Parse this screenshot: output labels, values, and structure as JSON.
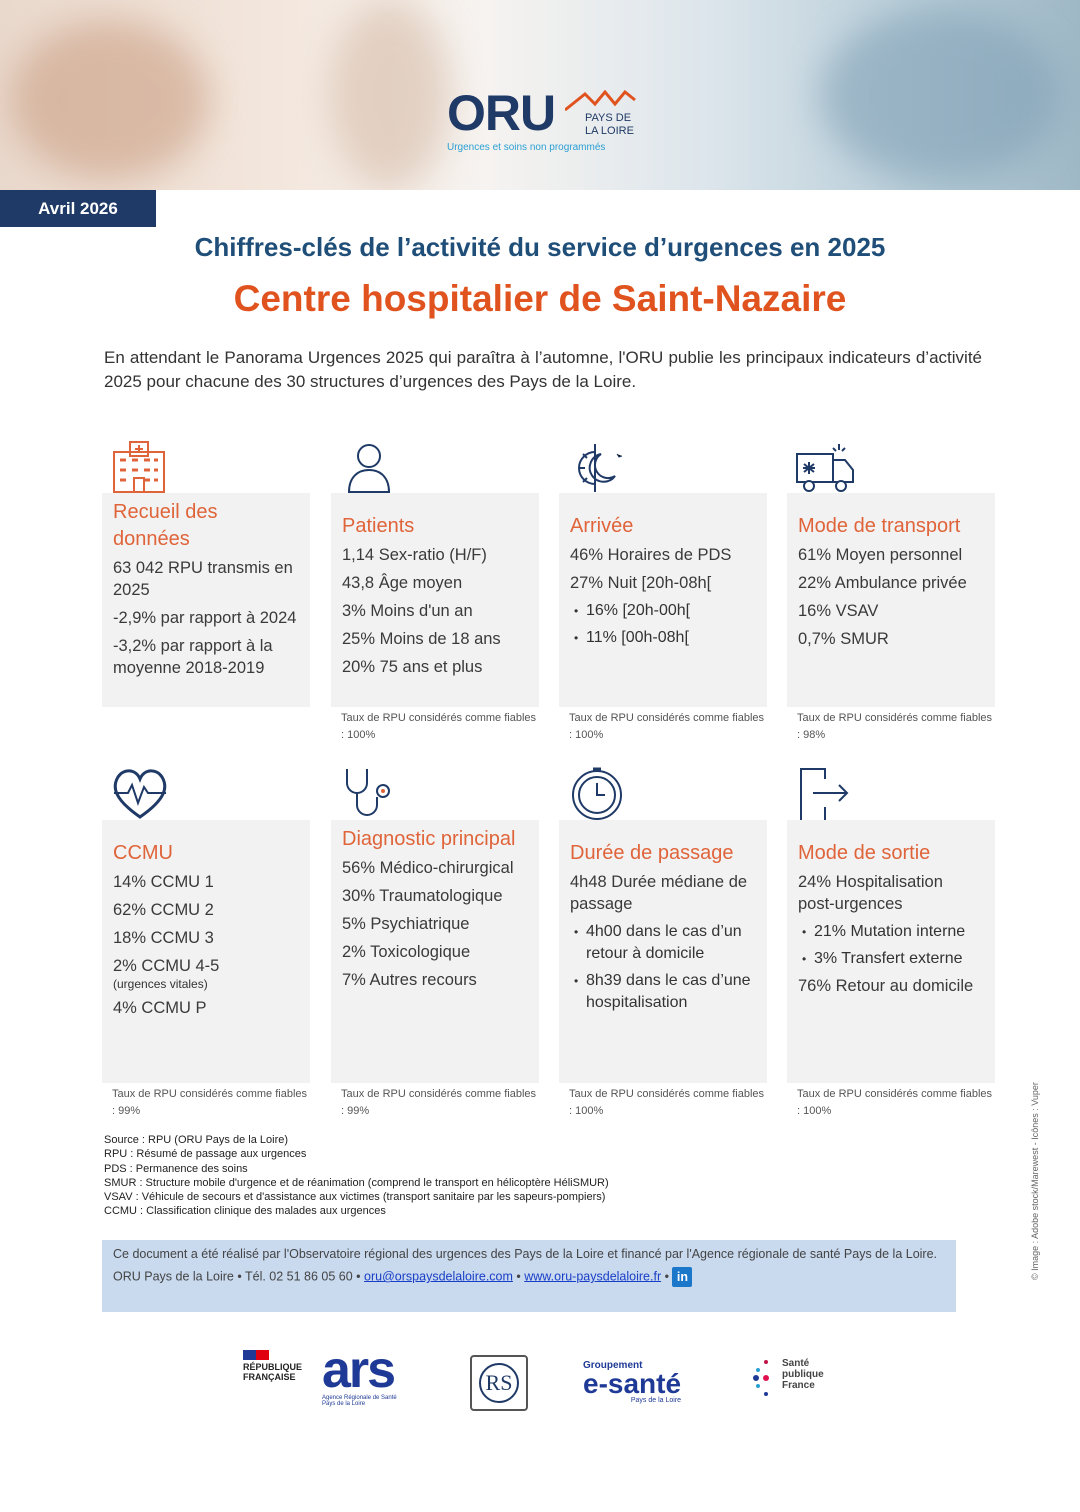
{
  "header": {
    "logo_text": "ORU",
    "logo_region": "PAYS DE LA LOIRE",
    "logo_tagline": "Urgences et soins non programmés",
    "date": "Avril 2026"
  },
  "title": "Chiffres-clés de l’activité du service d’urgences en 2025",
  "subtitle": "Centre hospitalier de Saint-Nazaire",
  "intro": "En attendant le Panorama Urgences 2025 qui paraîtra à l’automne, l'ORU publie les principaux indicateurs d’activité 2025 pour chacune des 30 structures d’urgences des Pays de la Loire.",
  "colors": {
    "accent": "#e0531f",
    "navy": "#1f3a66",
    "card_bg": "#f2f2f2"
  },
  "cards": [
    {
      "icon": "hospital-icon",
      "title": "Recueil des données",
      "lines": [
        {
          "t": "l",
          "text": "63 042 RPU transmis en 2025"
        },
        {
          "t": "l",
          "text": "-2,9% par rapport à 2024"
        },
        {
          "t": "l",
          "text": "-3,2% par rapport à la moyenne 2018-2019"
        }
      ],
      "note": ""
    },
    {
      "icon": "person-icon",
      "title": "Patients",
      "lines": [
        {
          "t": "l",
          "text": "1,14 Sex-ratio (H/F)"
        },
        {
          "t": "l",
          "text": "43,8 Âge moyen"
        },
        {
          "t": "l",
          "text": "3% Moins d'un an"
        },
        {
          "t": "l",
          "text": "25% Moins de 18 ans"
        },
        {
          "t": "l",
          "text": "20% 75 ans et plus"
        }
      ],
      "note": "Taux de RPU considérés comme fiables : 100%"
    },
    {
      "icon": "sun-moon-icon",
      "title": "Arrivée",
      "lines": [
        {
          "t": "l",
          "text": "46% Horaires de PDS"
        },
        {
          "t": "l",
          "text": "27% Nuit [20h-08h["
        },
        {
          "t": "b",
          "text": "16% [20h-00h["
        },
        {
          "t": "b",
          "text": "11% [00h-08h["
        }
      ],
      "note": "Taux de RPU considérés comme fiables : 100%"
    },
    {
      "icon": "ambulance-icon",
      "title": "Mode de transport",
      "lines": [
        {
          "t": "l",
          "text": "61% Moyen personnel"
        },
        {
          "t": "l",
          "text": "22% Ambulance privée"
        },
        {
          "t": "l",
          "text": "16% VSAV"
        },
        {
          "t": "l",
          "text": "0,7% SMUR"
        }
      ],
      "note": "Taux de RPU considérés comme fiables : 98%"
    },
    {
      "icon": "heartbeat-icon",
      "title": "CCMU",
      "lines": [
        {
          "t": "l",
          "text": "14% CCMU 1"
        },
        {
          "t": "l",
          "text": "62% CCMU 2"
        },
        {
          "t": "l",
          "text": "18% CCMU 3"
        },
        {
          "t": "l",
          "text": "2% CCMU 4-5"
        },
        {
          "t": "s",
          "text": "(urgences vitales)"
        },
        {
          "t": "l",
          "text": "4% CCMU P"
        }
      ],
      "note": "Taux de RPU considérés comme fiables : 99%"
    },
    {
      "icon": "stethoscope-icon",
      "title": "Diagnostic principal",
      "lines": [
        {
          "t": "l",
          "text": "56% Médico-chirurgical"
        },
        {
          "t": "l",
          "text": "30% Traumatologique"
        },
        {
          "t": "l",
          "text": "5% Psychiatrique"
        },
        {
          "t": "l",
          "text": "2% Toxicologique"
        },
        {
          "t": "l",
          "text": "7% Autres recours"
        }
      ],
      "note": "Taux de RPU considérés comme fiables : 99%"
    },
    {
      "icon": "clock-icon",
      "title": "Durée de passage",
      "lines": [
        {
          "t": "l",
          "text": "4h48 Durée médiane de passage"
        },
        {
          "t": "b",
          "text": "4h00 dans le cas d’un retour à domicile"
        },
        {
          "t": "b",
          "text": "8h39 dans le cas d’une hospitalisation"
        }
      ],
      "note": "Taux de RPU considérés comme fiables : 100%"
    },
    {
      "icon": "exit-icon",
      "title": "Mode de sortie",
      "lines": [
        {
          "t": "l",
          "text": "24% Hospitalisation post-urgences"
        },
        {
          "t": "b",
          "text": "21% Mutation interne"
        },
        {
          "t": "b",
          "text": "3% Transfert externe"
        },
        {
          "t": "l",
          "text": "76% Retour au domicile"
        }
      ],
      "note": "Taux de RPU considérés comme fiables : 100%"
    }
  ],
  "footnotes": [
    "Source : RPU (ORU Pays de la Loire)",
    "RPU : Résumé de passage aux urgences",
    "PDS : Permanence des soins",
    "SMUR : Structure mobile d'urgence et de réanimation (comprend le transport en hélicoptère HéliSMUR)",
    "VSAV : Véhicule de secours et d'assistance aux victimes (transport sanitaire par les sapeurs-pompiers)",
    "CCMU : Classification clinique des malades aux urgences"
  ],
  "band": {
    "text": "Ce document a été réalisé par l'Observatoire régional des urgences des Pays de la Loire et financé par l'Agence régionale de santé Pays de la Loire.",
    "contact": "ORU Pays de la Loire • Tél. 02 51 86 05 60 •",
    "email": "oru@orspaysdelaloire.com",
    "website": "www.oru-paysdelaloire.fr",
    "linkedin": "in"
  },
  "credit": "© Image : Adobe stock/Marewest - Icônes : Vuper",
  "partners": {
    "rf": "RÉPUBLIQUE FRANÇAISE",
    "ars": "ars",
    "ars_sub": "Agence Régionale de Santé Pays de la Loire",
    "rs": "RS",
    "esante_top": "Groupement",
    "esante": "e-santé",
    "esante_sub": "Pays de la Loire",
    "spf": "Santé publique France"
  }
}
